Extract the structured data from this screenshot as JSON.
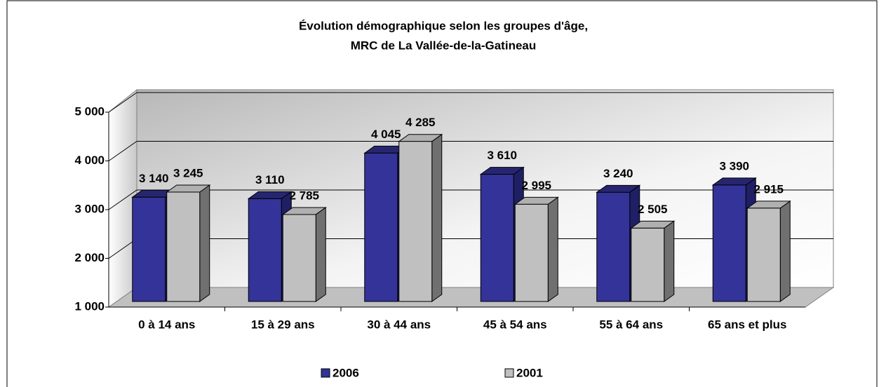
{
  "chart_data": {
    "type": "bar3d",
    "title": [
      "Évolution démographique selon les groupes d'âge,",
      "MRC de La Vallée-de-la-Gatineau"
    ],
    "categories": [
      "0 à 14 ans",
      "15 à 29 ans",
      "30 à 44 ans",
      "45 à 54 ans",
      "55 à 64 ans",
      "65 ans et plus"
    ],
    "series": [
      {
        "name": "2006",
        "color": "#333399",
        "values": [
          3140,
          3110,
          4045,
          3610,
          3240,
          3390
        ],
        "value_labels": [
          "3 140",
          "3 110",
          "4 045",
          "3 610",
          "3 240",
          "3 390"
        ]
      },
      {
        "name": "2001",
        "color": "#c0c0c0",
        "values": [
          3245,
          2785,
          4285,
          2995,
          2505,
          2915
        ],
        "value_labels": [
          "3 245",
          "2 785",
          "4 285",
          "2 995",
          "2 505",
          "2 915"
        ]
      }
    ],
    "ylim": [
      1000,
      5000
    ],
    "yticks": [
      {
        "value": 1000,
        "label": "1 000"
      },
      {
        "value": 2000,
        "label": "2 000"
      },
      {
        "value": 3000,
        "label": "3 000"
      },
      {
        "value": 4000,
        "label": "4 000"
      },
      {
        "value": 5000,
        "label": "5 000"
      }
    ],
    "grid": true,
    "legend": "bottom"
  }
}
